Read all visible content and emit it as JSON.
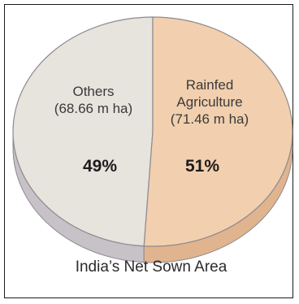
{
  "chart_data": {
    "type": "pie",
    "title": "India’s Net Sown Area",
    "slices": [
      {
        "label_lines": [
          "Others",
          "(68.66 m ha)"
        ],
        "value": 68.66,
        "percent_label": "49%",
        "color": "#e7e3dd",
        "side_color": "#c7c1c8"
      },
      {
        "label_lines": [
          "Rainfed",
          "Agriculture",
          "(71.46 m ha)"
        ],
        "value": 71.46,
        "percent_label": "51%",
        "color": "#f2cfae",
        "side_color": "#e0b48e"
      }
    ]
  }
}
